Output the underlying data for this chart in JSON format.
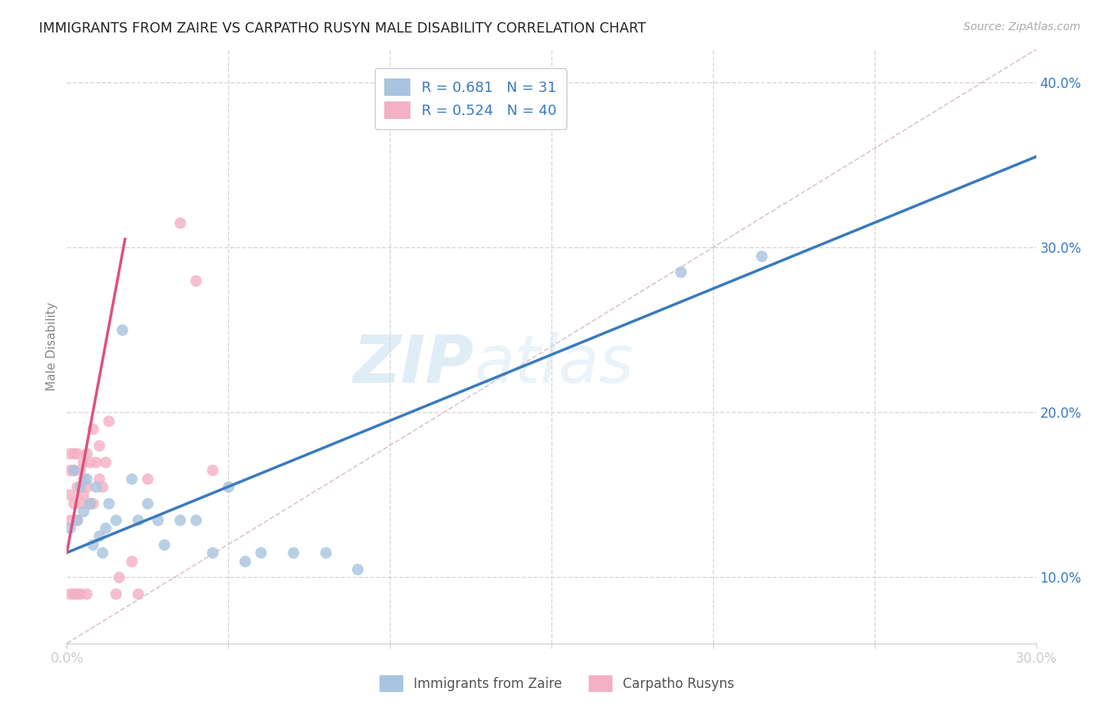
{
  "title": "IMMIGRANTS FROM ZAIRE VS CARPATHO RUSYN MALE DISABILITY CORRELATION CHART",
  "source": "Source: ZipAtlas.com",
  "ylabel": "Male Disability",
  "legend_label1": "Immigrants from Zaire",
  "legend_label2": "Carpatho Rusyns",
  "R1": 0.681,
  "N1": 31,
  "R2": 0.524,
  "N2": 40,
  "color1": "#a8c4e0",
  "color2": "#f4b0c4",
  "line_color1": "#3a7abf",
  "line_color2": "#e0507a",
  "ref_line_color": "#d8c0c8",
  "xlim": [
    0.0,
    0.3
  ],
  "ylim": [
    0.06,
    0.42
  ],
  "blue_line_x0": 0.0,
  "blue_line_y0": 0.115,
  "blue_line_x1": 0.3,
  "blue_line_y1": 0.355,
  "pink_line_x0": 0.0,
  "pink_line_y0": 0.115,
  "pink_line_x1": 0.018,
  "pink_line_y1": 0.305,
  "ref_line_x0": 0.0,
  "ref_line_y0": 0.06,
  "ref_line_x1": 0.3,
  "ref_line_y1": 0.42,
  "blue_points_x": [
    0.001,
    0.002,
    0.003,
    0.004,
    0.005,
    0.006,
    0.007,
    0.008,
    0.009,
    0.01,
    0.011,
    0.012,
    0.013,
    0.015,
    0.017,
    0.02,
    0.022,
    0.025,
    0.028,
    0.03,
    0.035,
    0.04,
    0.045,
    0.05,
    0.055,
    0.06,
    0.07,
    0.08,
    0.09,
    0.19,
    0.215
  ],
  "blue_points_y": [
    0.13,
    0.165,
    0.135,
    0.155,
    0.14,
    0.16,
    0.145,
    0.12,
    0.155,
    0.125,
    0.115,
    0.13,
    0.145,
    0.135,
    0.25,
    0.16,
    0.135,
    0.145,
    0.135,
    0.12,
    0.135,
    0.135,
    0.115,
    0.155,
    0.11,
    0.115,
    0.115,
    0.115,
    0.105,
    0.285,
    0.295
  ],
  "pink_points_x": [
    0.001,
    0.001,
    0.001,
    0.001,
    0.001,
    0.002,
    0.002,
    0.002,
    0.002,
    0.003,
    0.003,
    0.003,
    0.003,
    0.004,
    0.004,
    0.004,
    0.005,
    0.005,
    0.005,
    0.006,
    0.006,
    0.006,
    0.007,
    0.007,
    0.008,
    0.008,
    0.009,
    0.01,
    0.01,
    0.011,
    0.012,
    0.013,
    0.015,
    0.016,
    0.02,
    0.022,
    0.025,
    0.035,
    0.04,
    0.045
  ],
  "pink_points_y": [
    0.135,
    0.15,
    0.165,
    0.175,
    0.09,
    0.145,
    0.165,
    0.175,
    0.09,
    0.135,
    0.155,
    0.175,
    0.09,
    0.145,
    0.165,
    0.09,
    0.15,
    0.17,
    0.16,
    0.155,
    0.175,
    0.09,
    0.145,
    0.17,
    0.145,
    0.19,
    0.17,
    0.16,
    0.18,
    0.155,
    0.17,
    0.195,
    0.09,
    0.1,
    0.11,
    0.09,
    0.16,
    0.315,
    0.28,
    0.165
  ],
  "watermark_zip": "ZIP",
  "watermark_atlas": "atlas",
  "background_color": "#ffffff",
  "grid_color": "#d8d8d8"
}
